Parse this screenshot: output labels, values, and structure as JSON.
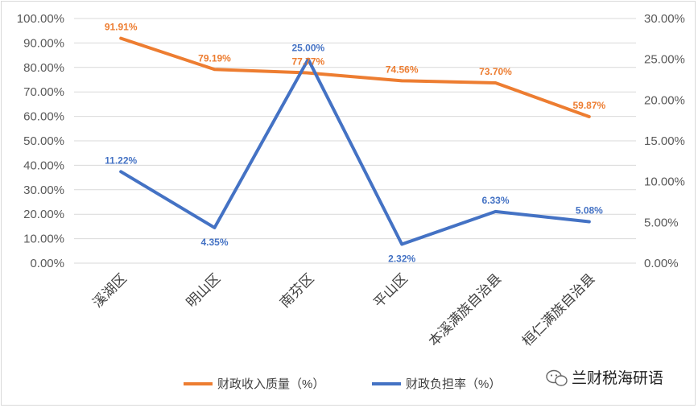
{
  "chart_data": {
    "type": "line",
    "categories": [
      "溪湖区",
      "明山区",
      "南芬区",
      "平山区",
      "本溪满族自治县",
      "桓仁满族自治县"
    ],
    "series": [
      {
        "name": "财政收入质量（%）",
        "axis": "left",
        "color": "#ed7d31",
        "values": [
          91.91,
          79.19,
          77.77,
          74.56,
          73.7,
          59.87
        ],
        "labels": [
          "91.91%",
          "79.19%",
          "77.77%",
          "74.56%",
          "73.70%",
          "59.87%"
        ]
      },
      {
        "name": "财政负担率（%）",
        "axis": "right",
        "color": "#4472c4",
        "values": [
          11.22,
          4.35,
          25.0,
          2.32,
          6.33,
          5.08
        ],
        "labels": [
          "11.22%",
          "4.35%",
          "25.00%",
          "2.32%",
          "6.33%",
          "5.08%"
        ]
      }
    ],
    "y_left": {
      "min": 0,
      "max": 100,
      "ticks": [
        0,
        10,
        20,
        30,
        40,
        50,
        60,
        70,
        80,
        90,
        100
      ],
      "tick_labels": [
        "0.00%",
        "10.00%",
        "20.00%",
        "30.00%",
        "40.00%",
        "50.00%",
        "60.00%",
        "70.00%",
        "80.00%",
        "90.00%",
        "100.00%"
      ]
    },
    "y_right": {
      "min": 0,
      "max": 30,
      "ticks": [
        0,
        5,
        10,
        15,
        20,
        25,
        30
      ],
      "tick_labels": [
        "0.00%",
        "5.00%",
        "10.00%",
        "15.00%",
        "20.00%",
        "25.00%",
        "30.00%"
      ]
    },
    "grid": true,
    "legend_position": "bottom"
  },
  "watermark": {
    "text": "兰财税海研语",
    "icon": "wechat-icon"
  }
}
